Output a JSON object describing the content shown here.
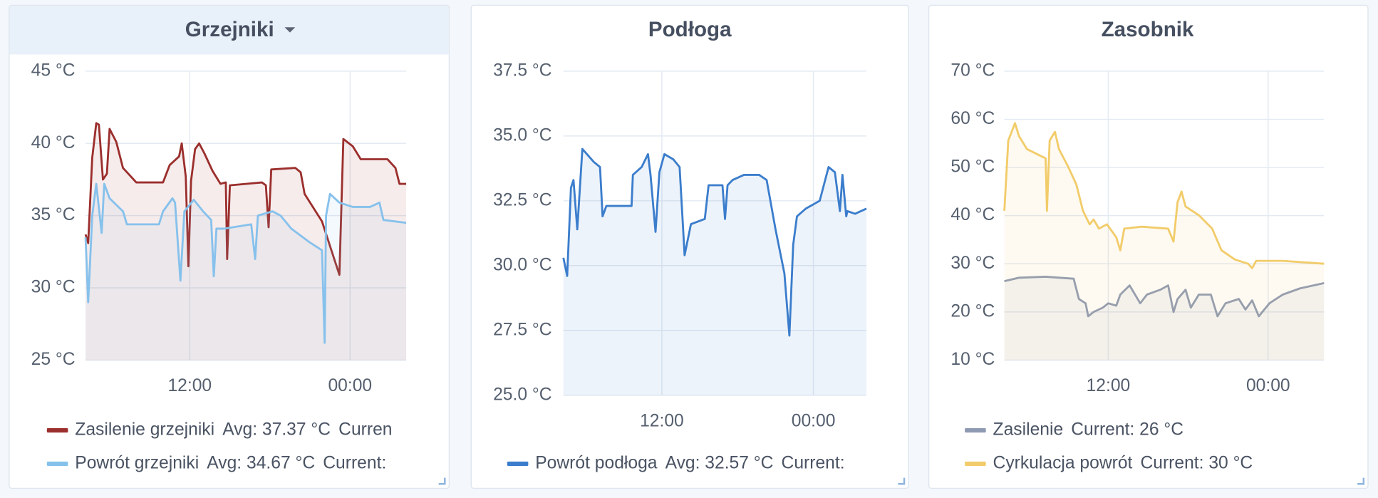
{
  "chart_data": [
    {
      "type": "line",
      "title": "Grzejniki",
      "xlim": [
        4.2,
        28.2
      ],
      "xticks": [
        {
          "value": 12,
          "label": "12:00"
        },
        {
          "value": 24,
          "label": "00:00"
        }
      ],
      "ylim": [
        25,
        45
      ],
      "yticks": [
        {
          "value": 25,
          "label": "25 °C"
        },
        {
          "value": 30,
          "label": "30 °C"
        },
        {
          "value": 35,
          "label": "35 °C"
        },
        {
          "value": 40,
          "label": "40 °C"
        },
        {
          "value": 45,
          "label": "45 °C"
        }
      ],
      "grid": true,
      "series": [
        {
          "name": "Zasilenie grzejniki",
          "color": "#9b2f2d",
          "legend_stats": [
            "Avg: 37.37 °C",
            "Curren"
          ],
          "x": [
            4.2,
            4.4,
            4.7,
            5.0,
            5.2,
            5.5,
            5.8,
            6.0,
            6.5,
            7.0,
            8.0,
            10.0,
            10.5,
            11.2,
            11.4,
            11.7,
            11.9,
            12.1,
            12.4,
            12.7,
            13.1,
            13.7,
            14.3,
            14.7,
            14.8,
            15.0,
            17.4,
            17.7,
            17.9,
            18.1,
            19.9,
            20.3,
            20.6,
            21.9,
            23.2,
            23.5,
            24.2,
            24.8,
            26.8,
            27.4,
            27.7,
            28.2
          ],
          "values": [
            33.7,
            33.1,
            39,
            41.4,
            41.3,
            37.5,
            37.9,
            41,
            40.1,
            38.3,
            37.3,
            37.3,
            38.5,
            39.1,
            40,
            37.7,
            31.5,
            37.4,
            39.6,
            40,
            39.3,
            38.1,
            37.2,
            37.3,
            32,
            37.1,
            37.3,
            37.1,
            34.2,
            38.2,
            38.3,
            38,
            36.5,
            34.6,
            30.9,
            40.3,
            39.8,
            38.9,
            38.9,
            38.3,
            37.2,
            37.2
          ]
        },
        {
          "name": "Powrót grzejniki",
          "color": "#86c1ec",
          "legend_stats": [
            "Avg: 34.67 °C",
            "Current:"
          ],
          "x": [
            4.2,
            4.4,
            4.7,
            5.0,
            5.4,
            5.6,
            6.0,
            7.0,
            7.3,
            9.7,
            10.0,
            10.7,
            10.9,
            11.3,
            11.6,
            12.3,
            13.0,
            13.6,
            13.8,
            14.0,
            14.6,
            16.6,
            16.9,
            17.1,
            18.2,
            18.8,
            19.6,
            20.9,
            21.9,
            22.1,
            22.2,
            22.5,
            23.2,
            24.2,
            25.5,
            26.2,
            26.5,
            28.2
          ],
          "values": [
            33.5,
            29.0,
            35.0,
            37.2,
            33.8,
            37.2,
            36.2,
            35.3,
            34.4,
            34.4,
            35.3,
            36.2,
            35.9,
            30.5,
            35.3,
            36.1,
            35.3,
            34.7,
            30.8,
            34.1,
            34.1,
            34.4,
            32.0,
            35.0,
            35.3,
            35.0,
            34.1,
            33.2,
            32.6,
            26.2,
            35.0,
            36.5,
            35.9,
            35.6,
            35.6,
            35.9,
            34.7,
            34.5
          ]
        }
      ]
    },
    {
      "type": "line",
      "title": "Podłoga",
      "xlim": [
        4.2,
        28.2
      ],
      "xticks": [
        {
          "value": 12,
          "label": "12:00"
        },
        {
          "value": 24,
          "label": "00:00"
        }
      ],
      "ylim": [
        25,
        37.5
      ],
      "yticks": [
        {
          "value": 25,
          "label": "25.0 °C"
        },
        {
          "value": 27.5,
          "label": "27.5 °C"
        },
        {
          "value": 30,
          "label": "30.0 °C"
        },
        {
          "value": 32.5,
          "label": "32.5 °C"
        },
        {
          "value": 35,
          "label": "35.0 °C"
        },
        {
          "value": 37.5,
          "label": "37.5 °C"
        }
      ],
      "grid": true,
      "series": [
        {
          "name": "Powrót podłoga",
          "color": "#3b7dcc",
          "legend_stats": [
            "Avg: 32.57 °C",
            "Current:"
          ],
          "x": [
            4.2,
            4.5,
            4.8,
            5.0,
            5.3,
            5.7,
            6.6,
            7.1,
            7.3,
            7.6,
            9.6,
            9.7,
            10.4,
            10.9,
            11.1,
            11.5,
            11.8,
            12.2,
            12.9,
            13.4,
            13.8,
            14.3,
            15.4,
            15.7,
            16.8,
            17.0,
            17.2,
            17.6,
            18.5,
            19.7,
            20.3,
            21.0,
            21.7,
            22.1,
            22.4,
            22.7,
            23.4,
            24.5,
            25.2,
            25.7,
            26.1,
            26.3,
            26.6,
            26.7,
            27.3,
            28.2
          ],
          "values": [
            30.3,
            29.6,
            33.0,
            33.3,
            31.4,
            34.5,
            34.0,
            33.8,
            31.9,
            32.3,
            32.3,
            33.5,
            33.8,
            34.3,
            33.5,
            31.3,
            33.6,
            34.3,
            34.1,
            33.8,
            30.4,
            31.6,
            31.8,
            33.1,
            33.1,
            31.8,
            33.1,
            33.3,
            33.5,
            33.5,
            33.3,
            31.4,
            29.7,
            27.3,
            30.8,
            31.9,
            32.2,
            32.5,
            33.8,
            33.6,
            32.1,
            33.5,
            31.9,
            32.1,
            32.0,
            32.2
          ]
        }
      ]
    },
    {
      "type": "line",
      "title": "Zasobnik",
      "xlim": [
        4.2,
        28.2
      ],
      "xticks": [
        {
          "value": 12,
          "label": "12:00"
        },
        {
          "value": 24,
          "label": "00:00"
        }
      ],
      "ylim": [
        10,
        70
      ],
      "yticks": [
        {
          "value": 10,
          "label": "10 °C"
        },
        {
          "value": 20,
          "label": "20 °C"
        },
        {
          "value": 30,
          "label": "30 °C"
        },
        {
          "value": 40,
          "label": "40 °C"
        },
        {
          "value": 50,
          "label": "50 °C"
        },
        {
          "value": 60,
          "label": "60 °C"
        },
        {
          "value": 70,
          "label": "70 °C"
        }
      ],
      "grid": true,
      "series": [
        {
          "name": "Zasilenie",
          "color": "#8e9ab2",
          "legend_stats": [
            "Current: 26 °C"
          ],
          "x": [
            4.2,
            5.3,
            7.3,
            9.4,
            9.8,
            10.3,
            10.5,
            10.9,
            11.6,
            12.0,
            12.6,
            12.9,
            13.6,
            14.4,
            14.9,
            15.9,
            16.5,
            16.9,
            17.2,
            17.8,
            18.2,
            18.8,
            19.7,
            20.2,
            20.8,
            21.8,
            22.3,
            22.8,
            23.3,
            24.1,
            25.1,
            26.4,
            28.2
          ],
          "values": [
            26.4,
            27.1,
            27.3,
            26.9,
            22.7,
            21.8,
            19.1,
            20.0,
            20.9,
            21.8,
            21.3,
            23.6,
            25.5,
            21.8,
            23.6,
            24.6,
            25.5,
            20.0,
            22.7,
            24.6,
            20.9,
            23.6,
            23.6,
            19.1,
            21.8,
            22.7,
            20.5,
            22.4,
            19.1,
            21.8,
            23.6,
            24.9,
            26.0
          ]
        },
        {
          "name": "Cyrkulacja powrót",
          "color": "#f2cc6a",
          "legend_stats": [
            "Current: 30 °C"
          ],
          "x": [
            4.2,
            4.5,
            5.0,
            5.3,
            5.9,
            7.0,
            7.3,
            7.4,
            7.6,
            8.0,
            8.3,
            9.0,
            9.6,
            10.1,
            10.6,
            10.9,
            11.3,
            11.9,
            12.6,
            12.9,
            13.2,
            14.5,
            16.5,
            16.9,
            17.2,
            17.5,
            17.8,
            18.8,
            19.8,
            20.5,
            21.5,
            22.5,
            22.8,
            23.1,
            25.1,
            28.2
          ],
          "values": [
            41.0,
            55.6,
            59.2,
            56.5,
            53.8,
            52.3,
            51.9,
            41.0,
            55.6,
            57.4,
            53.8,
            50.1,
            46.5,
            41.0,
            38.2,
            39.2,
            37.3,
            38.2,
            35.5,
            32.8,
            37.3,
            37.7,
            37.3,
            34.6,
            42.8,
            45.0,
            41.9,
            40.1,
            37.3,
            32.8,
            30.9,
            30.0,
            29.1,
            30.6,
            30.6,
            30.0
          ]
        }
      ]
    }
  ]
}
